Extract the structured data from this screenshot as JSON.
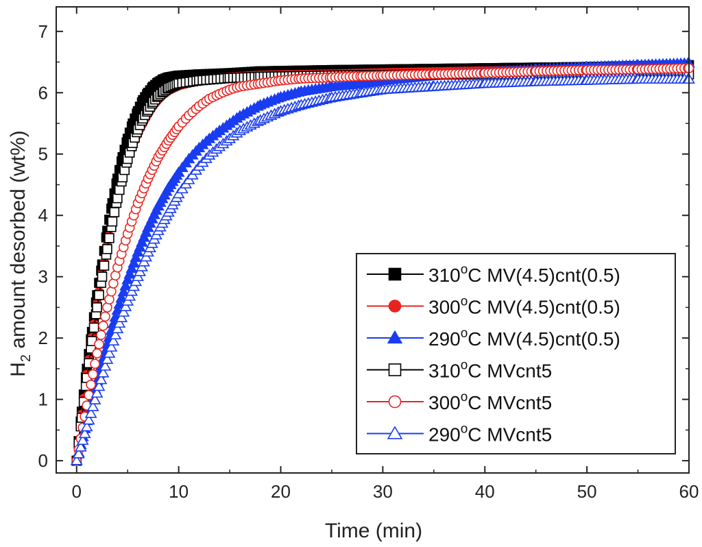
{
  "chart_data": {
    "type": "scatter",
    "title": "",
    "xlabel": "Time (min)",
    "ylabel": {
      "main": "H",
      "sub": "2",
      "rest": " amount desorbed (wt%)"
    },
    "xlim": [
      -2,
      60
    ],
    "ylim": [
      -0.2,
      7.4
    ],
    "xticks": [
      0,
      10,
      20,
      30,
      40,
      50,
      60
    ],
    "yticks": [
      0,
      1,
      2,
      3,
      4,
      5,
      6,
      7
    ],
    "legend_position": "bottom-right",
    "series": [
      {
        "name": "310°C MV(4.5)cnt(0.5)",
        "temp": "310",
        "label": "C MV(4.5)cnt(0.5)",
        "color": "#000000",
        "marker": "square",
        "filled": true,
        "x": [
          0,
          0.5,
          1,
          1.5,
          2,
          2.5,
          3,
          3.5,
          4,
          4.5,
          5,
          5.5,
          6,
          6.5,
          7,
          7.5,
          8,
          8.5,
          9,
          10,
          12,
          15,
          18,
          25,
          30,
          40,
          50,
          60
        ],
        "y": [
          0,
          0.8,
          1.5,
          2.1,
          2.7,
          3.2,
          3.75,
          4.2,
          4.6,
          4.95,
          5.25,
          5.5,
          5.7,
          5.88,
          6.0,
          6.1,
          6.17,
          6.22,
          6.25,
          6.28,
          6.3,
          6.32,
          6.35,
          6.37,
          6.38,
          6.4,
          6.42,
          6.45
        ]
      },
      {
        "name": "300°C MV(4.5)cnt(0.5)",
        "temp": "300",
        "label": "C MV(4.5)cnt(0.5)",
        "color": "#e8231f",
        "marker": "circle",
        "filled": true,
        "x": [
          0,
          0.5,
          1,
          1.5,
          2,
          2.5,
          3,
          3.5,
          4,
          4.5,
          5,
          5.5,
          6,
          6.5,
          7,
          7.5,
          8,
          8.5,
          9,
          10,
          12,
          15,
          18,
          25,
          30,
          40,
          50,
          60
        ],
        "y": [
          0,
          0.75,
          1.4,
          2.0,
          2.55,
          3.05,
          3.5,
          3.9,
          4.3,
          4.6,
          4.9,
          5.15,
          5.35,
          5.52,
          5.67,
          5.8,
          5.9,
          5.98,
          6.04,
          6.12,
          6.2,
          6.25,
          6.28,
          6.3,
          6.32,
          6.35,
          6.37,
          6.38
        ]
      },
      {
        "name": "290°C MV(4.5)cnt(0.5)",
        "temp": "290",
        "label": "C MV(4.5)cnt(0.5)",
        "color": "#1a3cf0",
        "marker": "triangle",
        "filled": true,
        "x": [
          0,
          1,
          2,
          3,
          4,
          5,
          6,
          7,
          8,
          9,
          10,
          11,
          12,
          13,
          14,
          15,
          16,
          18,
          20,
          22,
          25,
          28,
          30,
          35,
          40,
          45,
          50,
          55,
          60
        ],
        "y": [
          0,
          0.65,
          1.3,
          1.9,
          2.45,
          2.95,
          3.4,
          3.8,
          4.15,
          4.45,
          4.7,
          4.92,
          5.1,
          5.25,
          5.38,
          5.5,
          5.62,
          5.8,
          5.93,
          6.02,
          6.1,
          6.15,
          6.2,
          6.28,
          6.33,
          6.38,
          6.42,
          6.45,
          6.48
        ]
      },
      {
        "name": "310°C MVcnt5",
        "temp": "310",
        "label": "C MVcnt5",
        "color": "#000000",
        "marker": "square",
        "filled": false,
        "x": [
          0,
          0.5,
          1,
          1.5,
          2,
          2.5,
          3,
          3.5,
          4,
          4.5,
          5,
          5.5,
          6,
          6.5,
          7,
          7.5,
          8,
          8.5,
          9,
          10,
          12,
          15,
          18,
          25,
          30,
          40,
          50,
          60
        ],
        "y": [
          0,
          0.7,
          1.35,
          1.95,
          2.5,
          3.0,
          3.45,
          3.9,
          4.28,
          4.62,
          4.92,
          5.18,
          5.4,
          5.58,
          5.72,
          5.85,
          5.95,
          6.02,
          6.08,
          6.15,
          6.2,
          6.24,
          6.26,
          6.28,
          6.29,
          6.3,
          6.3,
          6.3
        ]
      },
      {
        "name": "300°C MVcnt5",
        "temp": "300",
        "label": "C MVcnt5",
        "color": "#e8231f",
        "marker": "circle",
        "filled": false,
        "x": [
          0,
          1,
          2,
          3,
          4,
          5,
          6,
          7,
          8,
          9,
          10,
          11,
          12,
          13,
          14,
          15,
          16,
          18,
          20,
          22,
          25,
          28,
          30,
          35,
          40,
          45,
          50,
          55,
          60
        ],
        "y": [
          0,
          0.9,
          1.75,
          2.5,
          3.15,
          3.7,
          4.2,
          4.6,
          4.95,
          5.22,
          5.45,
          5.63,
          5.78,
          5.9,
          5.98,
          6.05,
          6.1,
          6.15,
          6.2,
          6.23,
          6.25,
          6.27,
          6.28,
          6.3,
          6.32,
          6.35,
          6.37,
          6.38,
          6.4
        ]
      },
      {
        "name": "290°C MVcnt5",
        "temp": "290",
        "label": "C MVcnt5",
        "color": "#1a3cf0",
        "marker": "triangle",
        "filled": false,
        "x": [
          0,
          1,
          2,
          3,
          4,
          5,
          6,
          7,
          8,
          9,
          10,
          11,
          12,
          13,
          14,
          15,
          16,
          18,
          20,
          22,
          25,
          28,
          30,
          35,
          40,
          45,
          50,
          55,
          60
        ],
        "y": [
          0,
          0.55,
          1.1,
          1.65,
          2.15,
          2.6,
          3.0,
          3.4,
          3.75,
          4.05,
          4.35,
          4.58,
          4.8,
          4.98,
          5.12,
          5.25,
          5.38,
          5.55,
          5.7,
          5.8,
          5.92,
          6.0,
          6.05,
          6.1,
          6.15,
          6.18,
          6.2,
          6.22,
          6.22
        ]
      }
    ]
  }
}
